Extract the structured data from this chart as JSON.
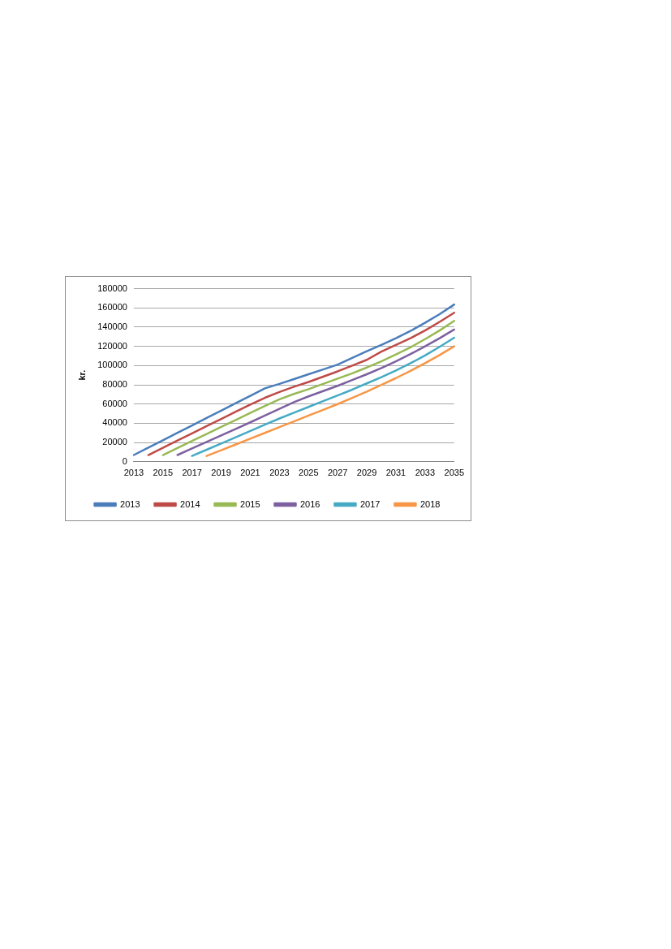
{
  "chart_data": {
    "type": "line",
    "ylabel": "kr.",
    "categories": [
      "2013",
      null,
      "2015",
      null,
      "2017",
      null,
      "2019",
      null,
      "2021",
      null,
      "2023",
      null,
      "2025",
      null,
      "2027",
      null,
      "2029",
      null,
      "2031",
      null,
      "2033",
      null,
      "2035"
    ],
    "ylim": [
      0,
      180000
    ],
    "yticks": [
      0,
      20000,
      40000,
      60000,
      80000,
      100000,
      120000,
      140000,
      160000,
      180000
    ],
    "grid": "y",
    "legend": "bottom",
    "marker": "none",
    "line_style": "solid",
    "series": [
      {
        "name": "2013",
        "color": "#4a7ebb",
        "values": [
          7000,
          14700,
          22400,
          30100,
          37800,
          45500,
          53200,
          60900,
          68600,
          76300,
          81000,
          86000,
          91000,
          96000,
          101000,
          108000,
          115000,
          121500,
          128500,
          136000,
          144500,
          153500,
          163500
        ]
      },
      {
        "name": "2014",
        "color": "#be4b48",
        "values": [
          null,
          7000,
          14500,
          22000,
          29500,
          37000,
          44500,
          52000,
          59500,
          66500,
          72500,
          78000,
          83000,
          88500,
          94000,
          100000,
          106000,
          114500,
          121500,
          128500,
          136500,
          145500,
          155000
        ]
      },
      {
        "name": "2015",
        "color": "#98b954",
        "values": [
          null,
          null,
          7000,
          14300,
          21600,
          28900,
          36200,
          43500,
          50800,
          58000,
          65000,
          70500,
          75500,
          81000,
          86500,
          92000,
          98000,
          104500,
          111500,
          119000,
          127500,
          136500,
          146500
        ]
      },
      {
        "name": "2016",
        "color": "#7d60a0",
        "values": [
          null,
          null,
          null,
          7000,
          13800,
          20600,
          27400,
          34200,
          41000,
          48000,
          55000,
          62000,
          68000,
          73500,
          79000,
          85000,
          91000,
          97500,
          104500,
          112000,
          120000,
          128500,
          137500
        ]
      },
      {
        "name": "2017",
        "color": "#46aac5",
        "values": [
          null,
          null,
          null,
          null,
          6000,
          12500,
          19000,
          25500,
          32000,
          38500,
          45000,
          51000,
          57000,
          63000,
          69000,
          75000,
          81500,
          88000,
          95000,
          102500,
          110500,
          119500,
          129000
        ]
      },
      {
        "name": "2018",
        "color": "#f79646",
        "values": [
          null,
          null,
          null,
          null,
          null,
          6000,
          12000,
          18000,
          24000,
          30000,
          36000,
          42000,
          48000,
          54000,
          60000,
          66500,
          73000,
          80000,
          87000,
          94500,
          102500,
          111000,
          120000
        ]
      }
    ]
  }
}
